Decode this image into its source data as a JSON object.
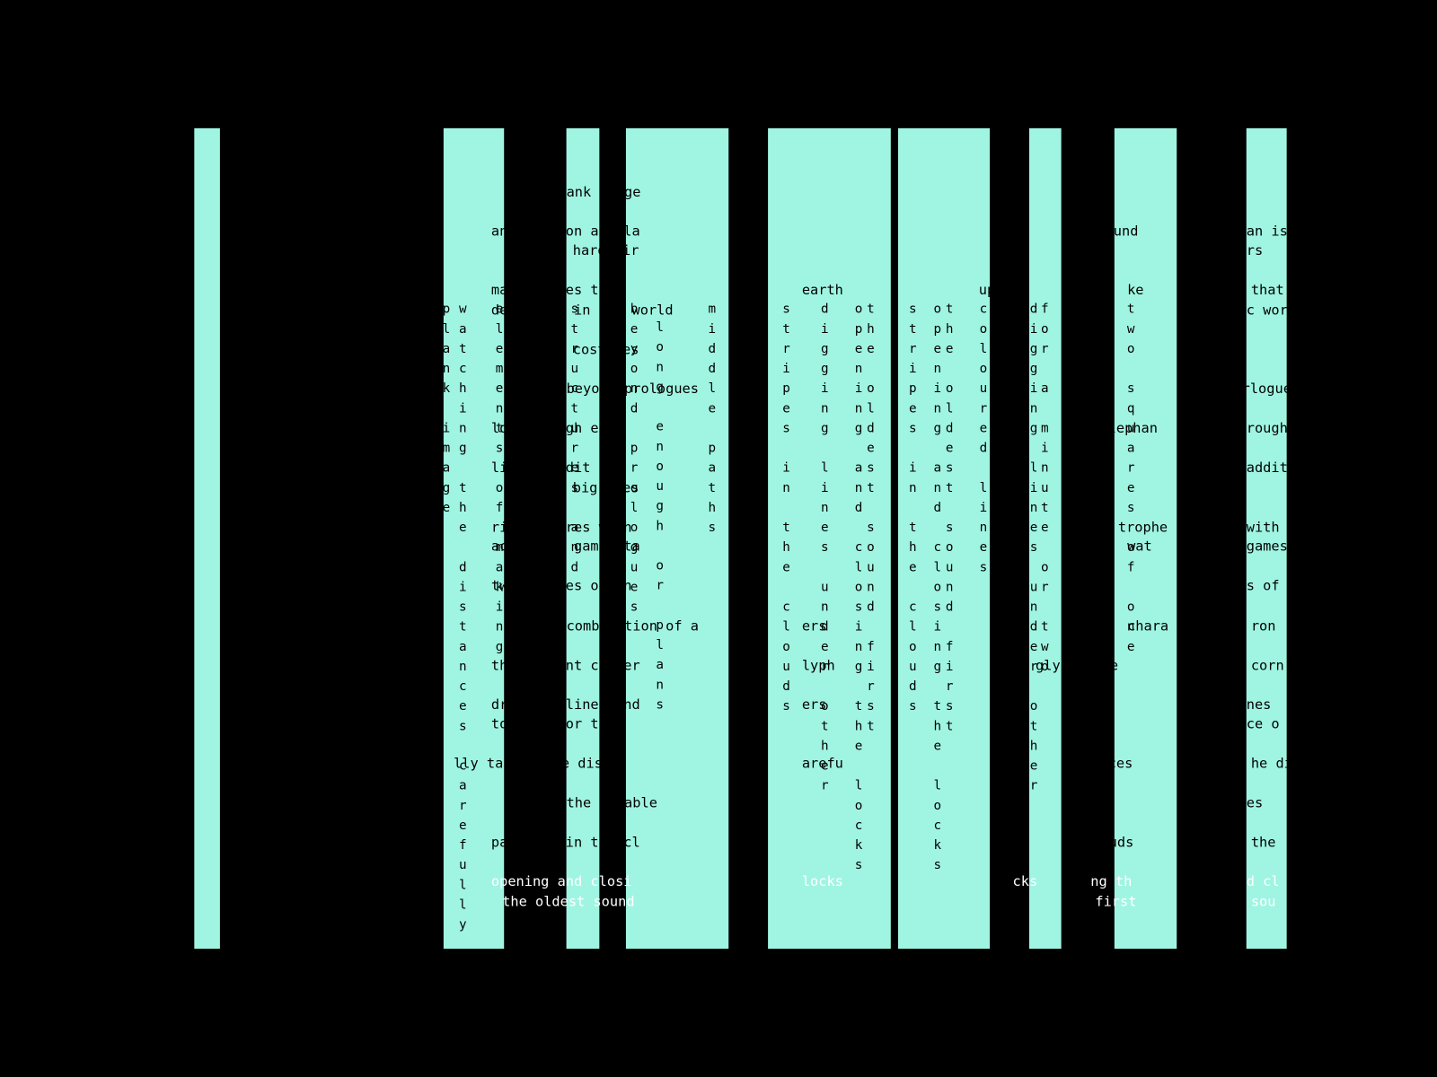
{
  "horizontal_texts": [
    "ank image",
    "an lying on a isla",
    "hard air",
    "make stones that",
    "earth",
    "deep rich in but world",
    "costumes",
    "beyond prologues",
    "long enough eve",
    "little addit",
    "big ones",
    "ridden wires with",
    "accessing games ta",
    "two squares of on",
    "combination of a",
    "the sequent corner",
    "dragging lines und",
    "to a nut or t",
    "lly taking the dist",
    "arefu",
    "the durable",
    "patterns in the cl",
    "locks",
    "opening and closi",
    "the oldest sound",
    "und",
    "uparth",
    "ke",
    "an is",
    "rs",
    "that",
    "c wor",
    "rlogue",
    "rough",
    "addit",
    "with",
    "games",
    "s of",
    "ron",
    "corn",
    "nes",
    "ce o",
    "he di",
    "es",
    "the",
    "d cl",
    "sou",
    "ers",
    "lyph",
    "ers",
    "glyphs are",
    "chara",
    "elephan",
    "trophe",
    "wat",
    "uds",
    "cks",
    "ng th",
    "first",
    "efu",
    "nces"
  ],
  "vertical_texts": [
    "watching the distances carefully",
    "plank image",
    "elements of making",
    "structures and",
    "beyond prologues",
    "long enough or plans",
    "middle paths",
    "stripes in the clouds",
    "digging lines under other",
    "opening and closing the locks",
    "the oldest sound first",
    "stripes in the clouds",
    "opening and closing the locks",
    "the oldest sound first",
    "digging lines under other",
    "for a minute or two",
    "two squares of one",
    "coloured lines"
  ]
}
